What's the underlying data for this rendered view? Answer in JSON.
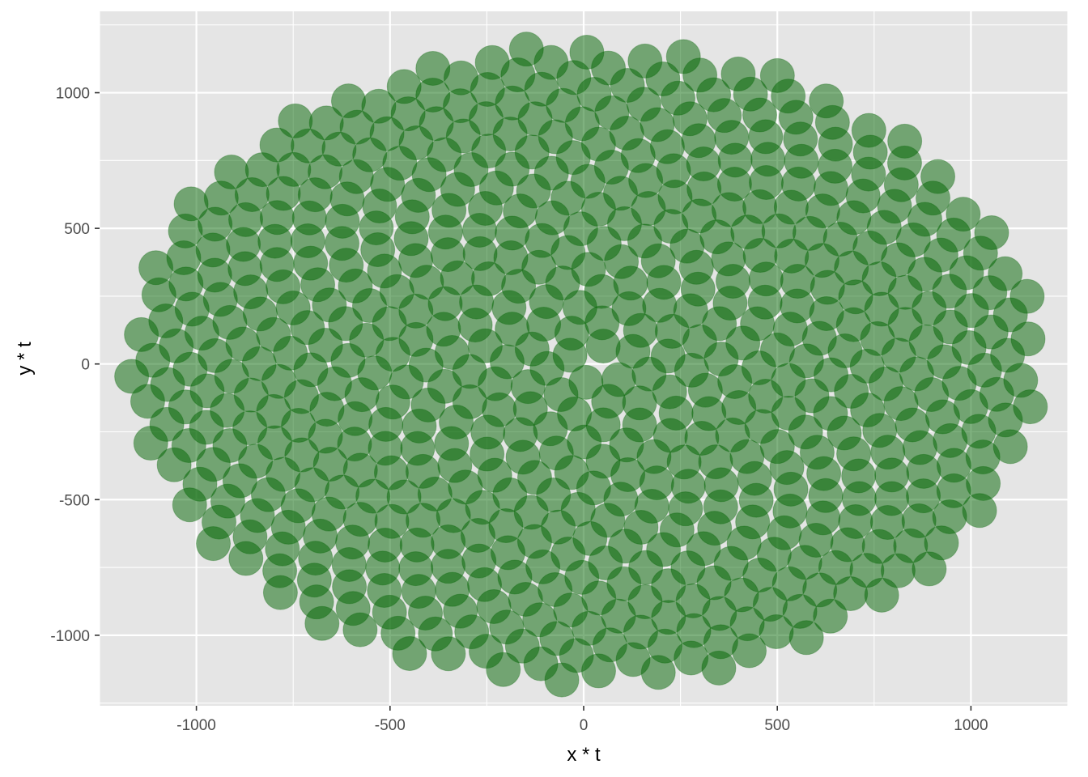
{
  "chart_data": {
    "type": "scatter",
    "title": "",
    "xlabel": "x * t",
    "ylabel": "y * t",
    "xlim": [
      -1250,
      1250
    ],
    "ylim": [
      -1260,
      1300
    ],
    "x_ticks": [
      -1000,
      -500,
      0,
      500,
      1000
    ],
    "y_ticks": [
      -1000,
      -500,
      0,
      500,
      1000
    ],
    "x_tick_labels": [
      "-1000",
      "-500",
      "0",
      "500",
      "1000"
    ],
    "y_tick_labels": [
      "-1000",
      "-500",
      "0",
      "500",
      "1000"
    ],
    "grid": true,
    "panel_background": "#e5e5e5",
    "grid_color": "#ffffff",
    "point_color": "#006400",
    "point_opacity": 0.5,
    "point_shape": "filled-circle",
    "pattern": "phyllotaxis spiral",
    "n_points": 600,
    "golden_angle_deg": 137.508,
    "max_radius": 1175
  }
}
